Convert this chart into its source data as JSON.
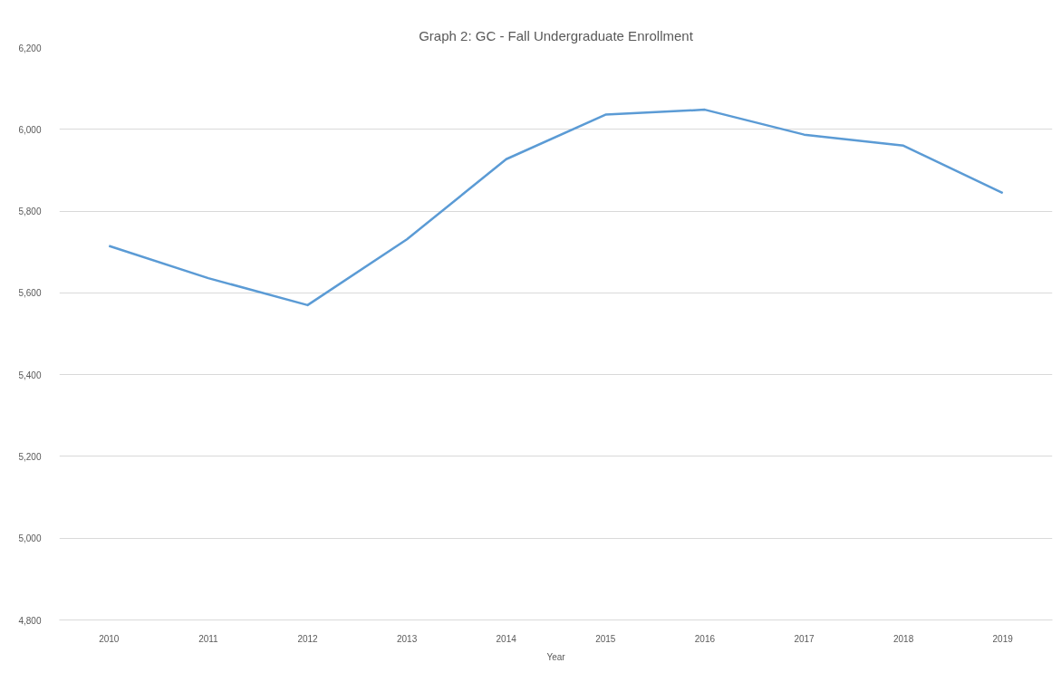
{
  "chart_data": {
    "type": "line",
    "title": "Graph 2: GC - Fall Undergraduate Enrollment",
    "xlabel": "Year",
    "categories": [
      "2010",
      "2011",
      "2012",
      "2013",
      "2014",
      "2015",
      "2016",
      "2017",
      "2018",
      "2019"
    ],
    "series": [
      {
        "color": "#5b9bd5",
        "values": [
          5715,
          5636,
          5570,
          5731,
          5927,
          6036,
          6048,
          5987,
          5960,
          5844
        ]
      }
    ],
    "ylim": [
      4800,
      6200
    ],
    "yticks": [
      {
        "value": 4800,
        "label": "4,800"
      },
      {
        "value": 5000,
        "label": "5,000"
      },
      {
        "value": 5200,
        "label": "5,200"
      },
      {
        "value": 5400,
        "label": "5,400"
      },
      {
        "value": 5600,
        "label": "5,600"
      },
      {
        "value": 5800,
        "label": "5,800"
      },
      {
        "value": 6000,
        "label": "6,000"
      },
      {
        "value": 6200,
        "label": "6,200"
      }
    ],
    "grid": "y",
    "marker": "none",
    "line_style": "solid"
  }
}
